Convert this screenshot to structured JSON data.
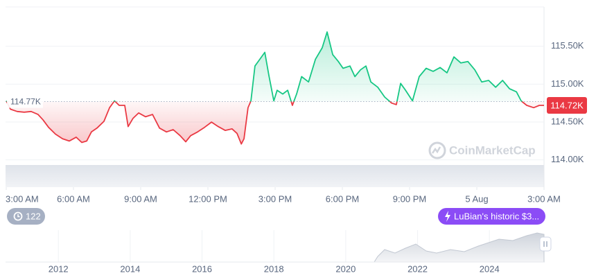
{
  "chart_data": [
    {
      "type": "line",
      "x": [
        0.0,
        0.19,
        0.49,
        0.8,
        1.11,
        1.42,
        1.64,
        1.89,
        2.2,
        2.51,
        2.81,
        3.12,
        3.37,
        3.59,
        3.8,
        4.05,
        4.36,
        4.61,
        4.83,
        5.04,
        5.29,
        5.44,
        5.66,
        5.91,
        6.22,
        6.53,
        6.84,
        7.15,
        7.45,
        7.76,
        8.01,
        8.23,
        8.54,
        8.85,
        9.16,
        9.46,
        9.77,
        10.08,
        10.3,
        10.49,
        10.61,
        10.79,
        10.92,
        11.1,
        11.32,
        11.54,
        11.72,
        11.94,
        12.09,
        12.34,
        12.56,
        12.77,
        12.96,
        13.18,
        13.49,
        13.8,
        14.1,
        14.32,
        14.57,
        14.82,
        15.03,
        15.34,
        15.56,
        15.81,
        16.05,
        16.27,
        16.58,
        16.89,
        17.2,
        17.41,
        17.6,
        17.82,
        18.13,
        18.43,
        18.74,
        19.05,
        19.36,
        19.67,
        19.98,
        20.29,
        20.6,
        20.91,
        21.22,
        21.53,
        21.84,
        22.15,
        22.46,
        22.77,
        22.98,
        23.23,
        23.54,
        23.79,
        24.0
      ],
      "values": [
        114780,
        114670,
        114640,
        114630,
        114640,
        114600,
        114530,
        114430,
        114340,
        114280,
        114250,
        114300,
        114230,
        114250,
        114370,
        114420,
        114510,
        114690,
        114780,
        114720,
        114720,
        114440,
        114550,
        114620,
        114570,
        114600,
        114420,
        114370,
        114400,
        114320,
        114240,
        114320,
        114370,
        114430,
        114500,
        114440,
        114390,
        114410,
        114350,
        114210,
        114280,
        114690,
        114780,
        115240,
        115330,
        115420,
        115120,
        114780,
        114920,
        114870,
        114920,
        114720,
        114870,
        115100,
        115030,
        115330,
        115480,
        115690,
        115390,
        115300,
        115210,
        115240,
        115100,
        115190,
        115240,
        115030,
        114960,
        114830,
        114750,
        114730,
        115010,
        114920,
        114780,
        115100,
        115210,
        115170,
        115220,
        115150,
        115360,
        115280,
        115300,
        115190,
        115030,
        115050,
        114960,
        115050,
        114940,
        114900,
        114780,
        114720,
        114690,
        114720,
        114720
      ],
      "up_color": "#16c784",
      "down_color": "#ea3943",
      "xlim": [
        0,
        24
      ],
      "xticks": [
        {
          "value": 0,
          "label": "3:00 AM"
        },
        {
          "value": 3,
          "label": "6:00 AM"
        },
        {
          "value": 6,
          "label": "9:00 AM"
        },
        {
          "value": 9,
          "label": "12:00 PM"
        },
        {
          "value": 12,
          "label": "3:00 PM"
        },
        {
          "value": 15,
          "label": "6:00 PM"
        },
        {
          "value": 18,
          "label": "9:00 PM"
        },
        {
          "value": 21,
          "label": "5 Aug"
        },
        {
          "value": 24,
          "label": "3:00 AM"
        }
      ],
      "ylim": [
        113640,
        116020
      ],
      "yticks": [
        {
          "value": 114000,
          "label": "114.00K"
        },
        {
          "value": 114500,
          "label": "114.50K"
        },
        {
          "value": 115000,
          "label": "115.00K"
        },
        {
          "value": 115500,
          "label": "115.50K"
        }
      ],
      "grid": true,
      "reference": {
        "value": 114770,
        "label": "114.77K"
      },
      "last_price": {
        "value": 114720,
        "label": "114.72K"
      },
      "watermark": "CoinMarketCap",
      "badges": [
        122,
        "LuBian's historic $3..."
      ]
    },
    {
      "type": "area",
      "xlim": [
        2010.53,
        2025.52
      ],
      "xticks": [
        2012,
        2014,
        2016,
        2018,
        2020,
        2022,
        2024
      ]
    }
  ]
}
